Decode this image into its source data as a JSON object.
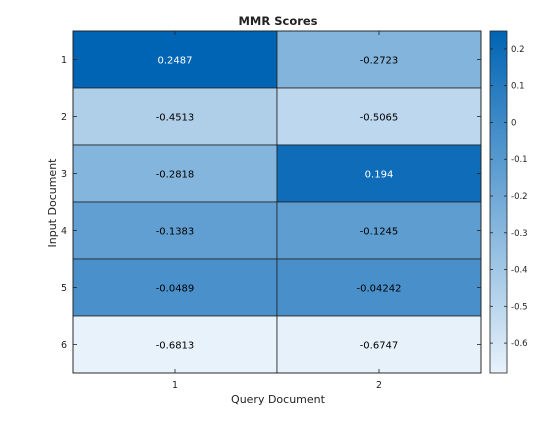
{
  "chart_data": {
    "type": "heatmap",
    "title": "MMR Scores",
    "xlabel": "Query Document",
    "ylabel": "Input Document",
    "x_categories": [
      "1",
      "2"
    ],
    "y_categories": [
      "1",
      "2",
      "3",
      "4",
      "5",
      "6"
    ],
    "values": [
      [
        0.2487,
        -0.2723
      ],
      [
        -0.4513,
        -0.5065
      ],
      [
        -0.2818,
        0.194
      ],
      [
        -0.1383,
        -0.1245
      ],
      [
        -0.0489,
        -0.04242
      ],
      [
        -0.6813,
        -0.6747
      ]
    ],
    "value_labels": [
      [
        "0.2487",
        "-0.2723"
      ],
      [
        "-0.4513",
        "-0.5065"
      ],
      [
        "-0.2818",
        "0.194"
      ],
      [
        "-0.1383",
        "-0.1245"
      ],
      [
        "-0.0489",
        "-0.04242"
      ],
      [
        "-0.6813",
        "-0.6747"
      ]
    ],
    "colorbar": {
      "min": -0.6813,
      "max": 0.2487,
      "ticks": [
        0.2,
        0.1,
        0,
        -0.1,
        -0.2,
        -0.3,
        -0.4,
        -0.5,
        -0.6
      ],
      "tick_labels": [
        "0.2",
        "0.1",
        "0",
        "-0.1",
        "-0.2",
        "-0.3",
        "-0.4",
        "-0.5",
        "-0.6"
      ],
      "low_color": "#e8f2fb",
      "high_color": "#0064b4"
    },
    "text_color_dark": "#000000",
    "text_color_light": "#ffffff"
  }
}
